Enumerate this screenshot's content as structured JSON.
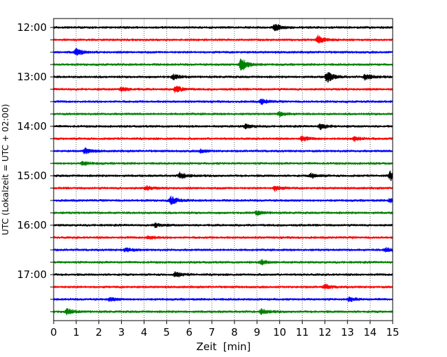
{
  "chart_data": {
    "type": "line",
    "title": "",
    "xlabel": "Zeit  [min]",
    "ylabel": "UTC (Lokalzeit = UTC + 02:00)",
    "xlim": [
      0,
      15
    ],
    "x_ticks": [
      "0",
      "1",
      "2",
      "3",
      "4",
      "5",
      "6",
      "7",
      "8",
      "9",
      "10",
      "11",
      "12",
      "13",
      "14",
      "15"
    ],
    "y_tick_labels": [
      "12:00",
      "13:00",
      "14:00",
      "15:00",
      "16:00",
      "17:00"
    ],
    "grid": "vertical dotted",
    "trace_interval_min": 15,
    "colors": [
      "#000000",
      "#ff0000",
      "#0000ff",
      "#008000"
    ],
    "series": [
      {
        "start": "12:00",
        "color": "#000000",
        "events": [
          {
            "t": 9.8,
            "a": 0.5
          }
        ]
      },
      {
        "start": "12:15",
        "color": "#ff0000",
        "events": [
          {
            "t": 11.7,
            "a": 0.6
          }
        ]
      },
      {
        "start": "12:30",
        "color": "#0000ff",
        "events": [
          {
            "t": 1.0,
            "a": 0.5
          }
        ]
      },
      {
        "start": "12:45",
        "color": "#008000",
        "events": [
          {
            "t": 8.3,
            "a": 1.0
          }
        ]
      },
      {
        "start": "13:00",
        "color": "#000000",
        "events": [
          {
            "t": 5.3,
            "a": 0.35
          },
          {
            "t": 12.1,
            "a": 0.8
          },
          {
            "t": 13.8,
            "a": 0.45
          }
        ]
      },
      {
        "start": "13:15",
        "color": "#ff0000",
        "events": [
          {
            "t": 5.4,
            "a": 0.5
          },
          {
            "t": 3.0,
            "a": 0.3
          }
        ]
      },
      {
        "start": "13:30",
        "color": "#0000ff",
        "events": [
          {
            "t": 9.2,
            "a": 0.35
          }
        ]
      },
      {
        "start": "13:45",
        "color": "#008000",
        "events": [
          {
            "t": 10.0,
            "a": 0.3
          }
        ]
      },
      {
        "start": "14:00",
        "color": "#000000",
        "events": [
          {
            "t": 11.8,
            "a": 0.4
          },
          {
            "t": 8.5,
            "a": 0.3
          }
        ]
      },
      {
        "start": "14:15",
        "color": "#ff0000",
        "events": [
          {
            "t": 11.0,
            "a": 0.35
          },
          {
            "t": 13.3,
            "a": 0.35
          }
        ]
      },
      {
        "start": "14:30",
        "color": "#0000ff",
        "events": [
          {
            "t": 1.4,
            "a": 0.4
          },
          {
            "t": 6.5,
            "a": 0.25
          }
        ]
      },
      {
        "start": "14:45",
        "color": "#008000",
        "events": [
          {
            "t": 1.3,
            "a": 0.25
          }
        ]
      },
      {
        "start": "15:00",
        "color": "#000000",
        "events": [
          {
            "t": 14.9,
            "a": 0.6
          },
          {
            "t": 5.6,
            "a": 0.45
          },
          {
            "t": 11.4,
            "a": 0.3
          }
        ]
      },
      {
        "start": "15:15",
        "color": "#ff0000",
        "events": [
          {
            "t": 9.8,
            "a": 0.35
          },
          {
            "t": 4.1,
            "a": 0.3
          }
        ]
      },
      {
        "start": "15:30",
        "color": "#0000ff",
        "events": [
          {
            "t": 5.2,
            "a": 0.6
          },
          {
            "t": 14.9,
            "a": 0.3
          }
        ]
      },
      {
        "start": "15:45",
        "color": "#008000",
        "events": [
          {
            "t": 9.0,
            "a": 0.3
          }
        ]
      },
      {
        "start": "16:00",
        "color": "#000000",
        "events": [
          {
            "t": 4.5,
            "a": 0.3
          }
        ]
      },
      {
        "start": "16:15",
        "color": "#ff0000",
        "events": [
          {
            "t": 4.2,
            "a": 0.25
          }
        ]
      },
      {
        "start": "16:30",
        "color": "#0000ff",
        "events": [
          {
            "t": 3.2,
            "a": 0.3
          },
          {
            "t": 14.7,
            "a": 0.3
          }
        ]
      },
      {
        "start": "16:45",
        "color": "#008000",
        "events": [
          {
            "t": 9.2,
            "a": 0.3
          }
        ]
      },
      {
        "start": "17:00",
        "color": "#000000",
        "events": [
          {
            "t": 5.4,
            "a": 0.35
          }
        ]
      },
      {
        "start": "17:15",
        "color": "#ff0000",
        "events": [
          {
            "t": 12.0,
            "a": 0.3
          }
        ]
      },
      {
        "start": "17:30",
        "color": "#0000ff",
        "events": [
          {
            "t": 2.5,
            "a": 0.25
          },
          {
            "t": 13.1,
            "a": 0.25
          }
        ]
      },
      {
        "start": "17:45",
        "color": "#008000",
        "events": [
          {
            "t": 0.6,
            "a": 0.4
          },
          {
            "t": 9.2,
            "a": 0.35
          }
        ]
      }
    ]
  }
}
